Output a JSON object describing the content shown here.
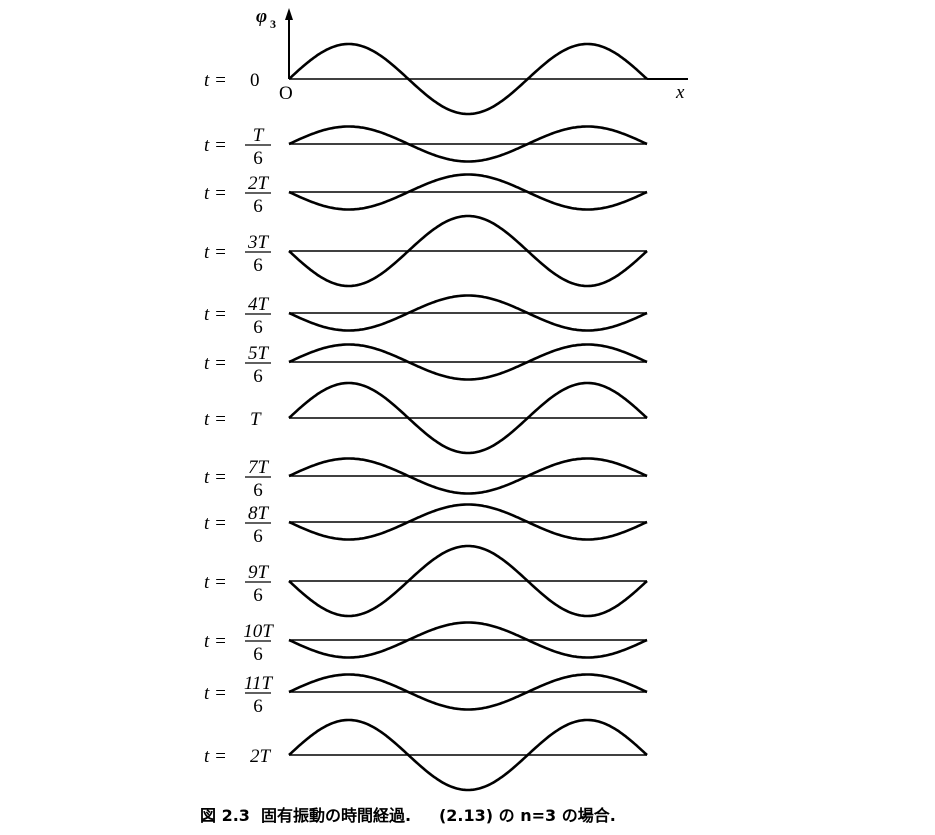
{
  "figure": {
    "y_axis_label": "φ",
    "y_axis_subscript": "3",
    "x_axis_label": "x",
    "origin_label": "O",
    "mode_number": 3,
    "rows": [
      {
        "prefix": "t =",
        "num": "0",
        "den": "",
        "t_over_T": 0
      },
      {
        "prefix": "t =",
        "num": "T",
        "den": "6",
        "t_over_T": 0.1667
      },
      {
        "prefix": "t =",
        "num": "2T",
        "den": "6",
        "t_over_T": 0.3333
      },
      {
        "prefix": "t =",
        "num": "3T",
        "den": "6",
        "t_over_T": 0.5
      },
      {
        "prefix": "t =",
        "num": "4T",
        "den": "6",
        "t_over_T": 0.6667
      },
      {
        "prefix": "t =",
        "num": "5T",
        "den": "6",
        "t_over_T": 0.8333
      },
      {
        "prefix": "t =",
        "num": "T",
        "den": "",
        "t_over_T": 1
      },
      {
        "prefix": "t =",
        "num": "7T",
        "den": "6",
        "t_over_T": 1.1667
      },
      {
        "prefix": "t =",
        "num": "8T",
        "den": "6",
        "t_over_T": 1.3333
      },
      {
        "prefix": "t =",
        "num": "9T",
        "den": "6",
        "t_over_T": 1.5
      },
      {
        "prefix": "t =",
        "num": "10T",
        "den": "6",
        "t_over_T": 1.6667
      },
      {
        "prefix": "t =",
        "num": "11T",
        "den": "6",
        "t_over_T": 1.8333
      },
      {
        "prefix": "t =",
        "num": "2T",
        "den": "",
        "t_over_T": 2
      }
    ]
  },
  "caption": "図 2.3  固有振動の時間経過.     (2.13) の n=3 の場合."
}
